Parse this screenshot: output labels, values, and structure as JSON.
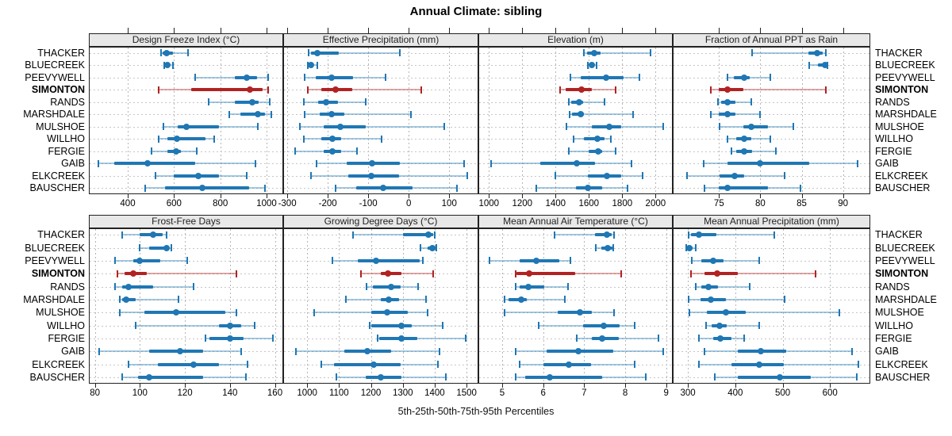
{
  "chart_data": {
    "type": "scatter",
    "subtype": "lattice percentile dotplot (5-25-50-75-95 whisker, IQR band, median dot)",
    "title": "Annual Climate: sibling",
    "caption": "5th-25th-50th-75th-95th Percentiles",
    "legend_position": "none",
    "grid": "dotted major gridlines, vertical per tick and horizontal per site row",
    "sites": [
      "THACKER",
      "BLUECREEK",
      "PEEVYWELL",
      "SIMONTON",
      "RANDS",
      "MARSHDALE",
      "MULSHOE",
      "WILLHO",
      "FERGIE",
      "GAIB",
      "ELKCREEK",
      "BAUSCHER"
    ],
    "highlight_site": "SIMONTON",
    "colors": {
      "base": "#1f77b4",
      "base_light": "rgba(31,119,180,0.40)",
      "highlight": "#b22222",
      "highlight_light": "rgba(178,34,34,0.40)",
      "strip_bg": "#e8e8e8",
      "border": "#222222"
    },
    "percentile_labels": [
      "p5",
      "p25",
      "p50",
      "p75",
      "p95"
    ],
    "panels": [
      {
        "grid_row": 0,
        "grid_col": 0,
        "title": "Design Freeze Index (°C)",
        "xlim": [
          232,
          1072
        ],
        "ticks": [
          400,
          600,
          800,
          1000
        ],
        "values": [
          [
            545,
            551,
            568,
            594,
            661
          ],
          [
            557,
            563,
            573,
            583,
            597
          ],
          [
            691,
            863,
            914,
            960,
            1008
          ],
          [
            534,
            674,
            929,
            983,
            1006
          ],
          [
            751,
            863,
            937,
            966,
            1014
          ],
          [
            840,
            886,
            962,
            994,
            1020
          ],
          [
            554,
            617,
            654,
            794,
            962
          ],
          [
            535,
            571,
            611,
            737,
            774
          ],
          [
            503,
            571,
            609,
            629,
            697
          ],
          [
            274,
            343,
            484,
            691,
            952
          ],
          [
            520,
            600,
            705,
            794,
            914
          ],
          [
            474,
            560,
            723,
            926,
            994
          ]
        ]
      },
      {
        "grid_row": 0,
        "grid_col": 1,
        "title": "Effective Precipitation (mm)",
        "xlim": [
          -310,
          172
        ],
        "ticks": [
          -300,
          -200,
          -100,
          0,
          100
        ],
        "values": [
          [
            -247,
            -241,
            -225,
            -172,
            -22
          ],
          [
            -249,
            -246,
            -242,
            -236,
            -226
          ],
          [
            -257,
            -229,
            -190,
            -138,
            -58
          ],
          [
            -250,
            -215,
            -181,
            -139,
            31
          ],
          [
            -260,
            -223,
            -205,
            -175,
            -107
          ],
          [
            -257,
            -220,
            -190,
            -159,
            5
          ],
          [
            -269,
            -210,
            -169,
            -106,
            88
          ],
          [
            -260,
            -216,
            -189,
            -167,
            -67
          ],
          [
            -280,
            -210,
            -188,
            -166,
            -128
          ],
          [
            -227,
            -154,
            -90,
            -22,
            136
          ],
          [
            -242,
            -149,
            -92,
            -24,
            144
          ],
          [
            -180,
            -129,
            -64,
            9,
            120
          ]
        ]
      },
      {
        "grid_row": 0,
        "grid_col": 2,
        "title": "Elevation (m)",
        "xlim": [
          937,
          2103
        ],
        "ticks": [
          1000,
          1200,
          1400,
          1600,
          1800,
          2000
        ],
        "values": [
          [
            1568,
            1590,
            1632,
            1670,
            1971
          ],
          [
            1595,
            1605,
            1616,
            1632,
            1648
          ],
          [
            1489,
            1552,
            1703,
            1806,
            1905
          ],
          [
            1425,
            1460,
            1556,
            1619,
            1762
          ],
          [
            1479,
            1495,
            1543,
            1563,
            1695
          ],
          [
            1484,
            1500,
            1552,
            1571,
            1865
          ],
          [
            1465,
            1619,
            1722,
            1794,
            2048
          ],
          [
            1508,
            1568,
            1650,
            1695,
            1733
          ],
          [
            1481,
            1600,
            1658,
            1680,
            1758
          ],
          [
            1011,
            1310,
            1529,
            1635,
            1857
          ],
          [
            1397,
            1595,
            1710,
            1794,
            1924
          ],
          [
            1283,
            1520,
            1595,
            1679,
            1833
          ]
        ]
      },
      {
        "grid_row": 0,
        "grid_col": 3,
        "title": "Fraction of Annual PPT as Rain",
        "xlim": [
          69.4,
          93.3
        ],
        "ticks": [
          75,
          80,
          85,
          90
        ],
        "values": [
          [
            79.0,
            85.8,
            86.9,
            87.5,
            87.9
          ],
          [
            85.9,
            87.0,
            87.8,
            88.0,
            88.1
          ],
          [
            76.0,
            76.8,
            78.0,
            78.7,
            81.2
          ],
          [
            74.0,
            75.0,
            76.0,
            77.9,
            87.9
          ],
          [
            74.9,
            75.3,
            76.0,
            77.0,
            78.9
          ],
          [
            74.0,
            75.0,
            76.0,
            77.0,
            80.0
          ],
          [
            75.1,
            77.9,
            78.9,
            80.9,
            84.0
          ],
          [
            76.0,
            77.1,
            78.0,
            78.9,
            81.2
          ],
          [
            76.5,
            77.1,
            78.0,
            79.0,
            81.9
          ],
          [
            73.1,
            76.0,
            80.0,
            85.9,
            91.8
          ],
          [
            71.1,
            75.1,
            76.9,
            78.0,
            82.9
          ],
          [
            73.2,
            75.0,
            76.0,
            80.9,
            84.9
          ]
        ]
      },
      {
        "grid_row": 1,
        "grid_col": 0,
        "title": "Frost-Free Days",
        "xlim": [
          77.3,
          163.7
        ],
        "ticks": [
          80,
          100,
          120,
          140,
          160
        ],
        "values": [
          [
            92,
            100,
            106,
            110,
            112
          ],
          [
            100,
            104,
            112,
            113,
            114
          ],
          [
            89,
            97,
            100,
            109,
            121
          ],
          [
            90,
            93,
            97,
            103,
            143
          ],
          [
            89,
            92,
            95,
            106,
            124
          ],
          [
            91,
            92,
            94,
            98,
            117
          ],
          [
            91,
            102,
            116,
            138,
            143
          ],
          [
            98,
            135,
            140,
            145,
            151
          ],
          [
            129,
            131,
            140,
            146,
            159
          ],
          [
            82,
            104,
            118,
            128,
            145
          ],
          [
            95,
            108,
            124,
            135,
            148
          ],
          [
            92,
            99,
            104,
            128,
            147
          ]
        ]
      },
      {
        "grid_row": 1,
        "grid_col": 1,
        "title": "Growing Degree Days (°C)",
        "xlim": [
          925,
          1537
        ],
        "ticks": [
          1000,
          1100,
          1200,
          1300,
          1400,
          1500
        ],
        "values": [
          [
            1145,
            1300,
            1380,
            1395,
            1401
          ],
          [
            1356,
            1378,
            1393,
            1403,
            1406
          ],
          [
            1078,
            1160,
            1217,
            1352,
            1363
          ],
          [
            1168,
            1232,
            1254,
            1296,
            1396
          ],
          [
            1186,
            1205,
            1263,
            1292,
            1349
          ],
          [
            1122,
            1230,
            1256,
            1287,
            1372
          ],
          [
            1021,
            1200,
            1250,
            1316,
            1377
          ],
          [
            1195,
            1201,
            1296,
            1329,
            1424
          ],
          [
            1221,
            1227,
            1296,
            1345,
            1498
          ],
          [
            964,
            1116,
            1188,
            1263,
            1414
          ],
          [
            1044,
            1085,
            1209,
            1292,
            1409
          ],
          [
            1091,
            1184,
            1230,
            1296,
            1436
          ]
        ]
      },
      {
        "grid_row": 1,
        "grid_col": 2,
        "title": "Mean Annual Air Temperature (°C)",
        "xlim": [
          4.42,
          9.16
        ],
        "ticks": [
          5,
          6,
          7,
          8,
          9
        ],
        "values": [
          [
            6.27,
            7.26,
            7.56,
            7.68,
            7.73
          ],
          [
            7.28,
            7.42,
            7.57,
            7.68,
            7.71
          ],
          [
            4.7,
            5.42,
            5.83,
            6.39,
            6.66
          ],
          [
            5.32,
            5.35,
            5.66,
            6.79,
            7.9
          ],
          [
            5.32,
            5.42,
            5.63,
            6.03,
            6.6
          ],
          [
            5.05,
            5.16,
            5.47,
            5.61,
            6.52
          ],
          [
            5.05,
            6.35,
            6.9,
            7.19,
            7.73
          ],
          [
            5.9,
            6.97,
            7.48,
            7.86,
            8.24
          ],
          [
            6.82,
            7.18,
            7.43,
            7.84,
            8.81
          ],
          [
            5.32,
            6.08,
            6.85,
            7.71,
            8.92
          ],
          [
            5.43,
            6.01,
            6.63,
            7.16,
            8.23
          ],
          [
            5.32,
            5.57,
            6.16,
            7.44,
            8.5
          ]
        ]
      },
      {
        "grid_row": 1,
        "grid_col": 3,
        "title": "Mean Annual Precipitation (mm)",
        "xlim": [
          268,
          685
        ],
        "ticks": [
          300,
          400,
          500,
          600
        ],
        "values": [
          [
            302,
            306,
            324,
            360,
            483
          ],
          [
            297,
            299,
            303,
            310,
            317
          ],
          [
            308,
            328,
            353,
            376,
            450
          ],
          [
            307,
            335,
            361,
            405,
            569
          ],
          [
            316,
            328,
            344,
            364,
            431
          ],
          [
            301,
            326,
            349,
            381,
            504
          ],
          [
            304,
            340,
            381,
            422,
            620
          ],
          [
            339,
            350,
            367,
            382,
            451
          ],
          [
            324,
            353,
            368,
            392,
            419
          ],
          [
            335,
            406,
            454,
            508,
            647
          ],
          [
            324,
            392,
            450,
            503,
            660
          ],
          [
            356,
            405,
            494,
            559,
            657
          ]
        ]
      }
    ]
  }
}
